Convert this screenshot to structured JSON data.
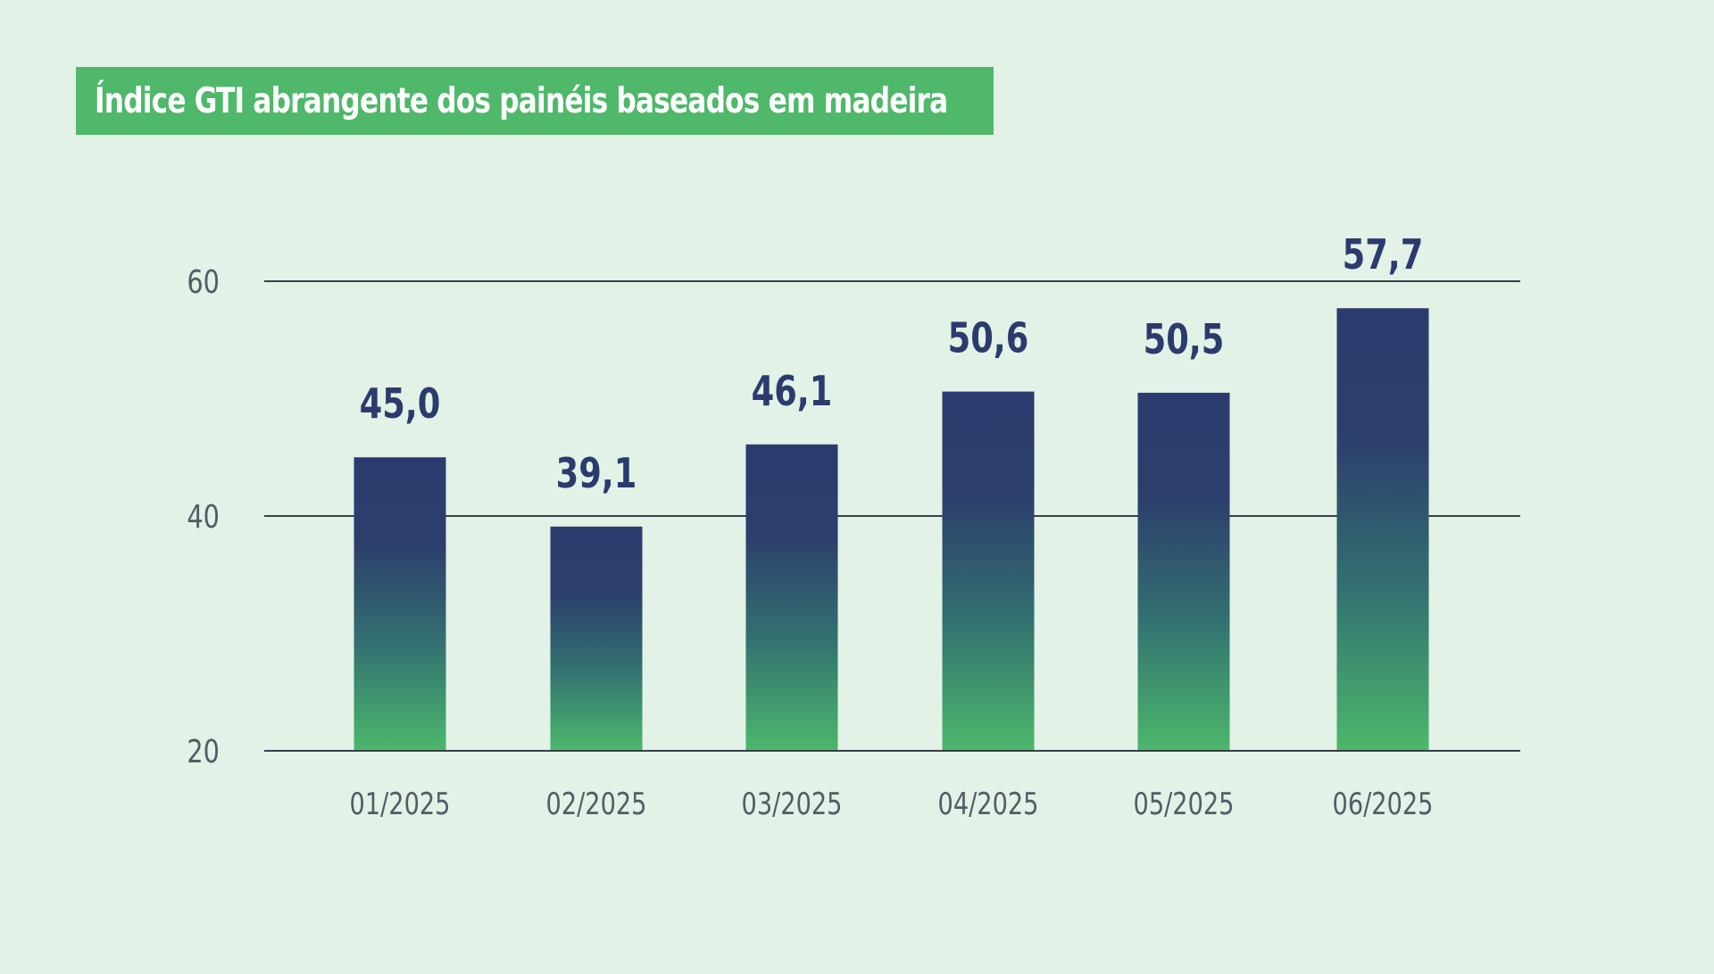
{
  "title": "Índice GTI abrangente dos painéis baseados em madeira",
  "colors": {
    "background": "#e2f2e6",
    "title_background": "#4fb86b",
    "bar_top": "#2c3b6e",
    "bar_bottom": "#4cb86b",
    "value_label": "#2c3b6e",
    "gridline": "#3a3f48"
  },
  "chart_data": {
    "type": "bar",
    "title": "Índice GTI abrangente dos painéis baseados em madeira",
    "categories": [
      "01/2025",
      "02/2025",
      "03/2025",
      "04/2025",
      "05/2025",
      "06/2025"
    ],
    "values": [
      45.0,
      39.1,
      46.1,
      50.6,
      50.5,
      57.7
    ],
    "value_labels": [
      "45,0",
      "39,1",
      "46,1",
      "50,6",
      "50,5",
      "57,7"
    ],
    "yticks": [
      20,
      40,
      60
    ],
    "ylim": [
      20,
      60
    ],
    "grid": true,
    "legend": "none"
  }
}
